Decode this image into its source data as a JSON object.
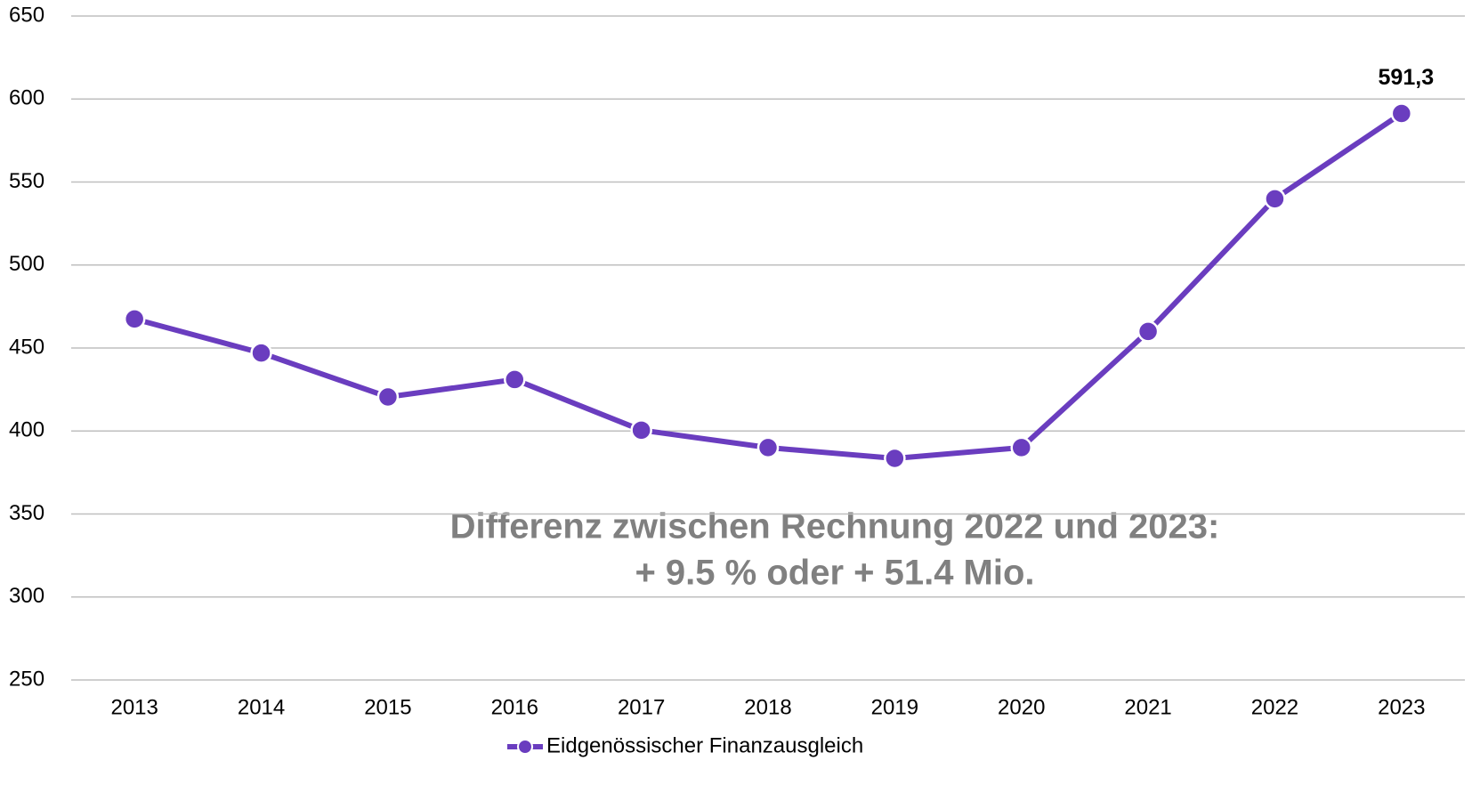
{
  "chart_data": {
    "type": "line",
    "categories": [
      "2013",
      "2014",
      "2015",
      "2016",
      "2017",
      "2018",
      "2019",
      "2020",
      "2021",
      "2022",
      "2023"
    ],
    "series": [
      {
        "name": "Eidgenössischer Finanzausgleich",
        "color": "#6a3dbf",
        "values": [
          467.5,
          447,
          420.5,
          431,
          400.5,
          390,
          383.5,
          390,
          460,
          539.9,
          591.3
        ],
        "value_labels": [
          null,
          null,
          null,
          null,
          null,
          null,
          null,
          null,
          null,
          null,
          "591,3"
        ]
      }
    ],
    "ylim": [
      250,
      650
    ],
    "yticks": [
      250,
      300,
      350,
      400,
      450,
      500,
      550,
      600,
      650
    ],
    "grid": true,
    "annotations": [
      "Differenz zwischen Rechnung 2022 und 2023:",
      "+ 9.5 % oder + 51.4 Mio."
    ],
    "legend": "bottom"
  }
}
